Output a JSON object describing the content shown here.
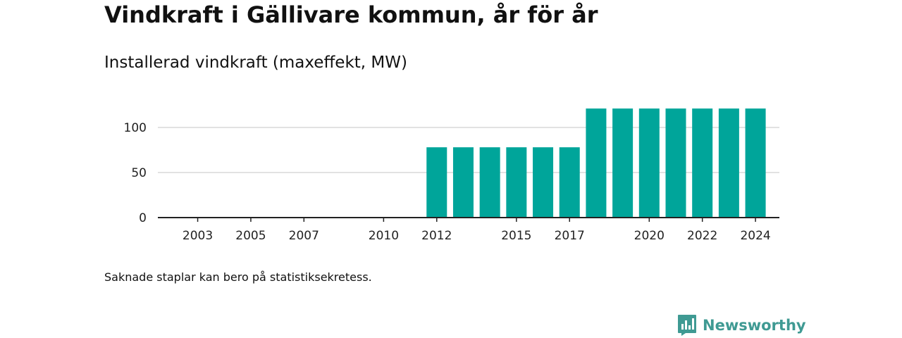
{
  "header": {
    "title": "Vindkraft i Gällivare kommun, år för år",
    "subtitle": "Installerad vindkraft (maxeffekt, MW)"
  },
  "footer": {
    "note": "Saknade staplar kan bero på statistiksekretess.",
    "brand": "Newsworthy"
  },
  "colors": {
    "bar": "#00a59a",
    "brand": "#3f9a93",
    "axis": "#222222",
    "grid": "#d9d9d9"
  },
  "icons": {
    "brand_logo": "bar-chart-speech-bubble-icon"
  },
  "chart_data": {
    "type": "bar",
    "title": "Vindkraft i Gällivare kommun, år för år",
    "subtitle": "Installerad vindkraft (maxeffekt, MW)",
    "xlabel": "",
    "ylabel": "",
    "ylim": [
      0,
      125
    ],
    "yticks": [
      0,
      50,
      100
    ],
    "xticks": [
      2003,
      2005,
      2007,
      2010,
      2012,
      2015,
      2017,
      2020,
      2022,
      2024
    ],
    "grid": true,
    "categories": [
      2002,
      2003,
      2004,
      2005,
      2006,
      2007,
      2008,
      2009,
      2010,
      2011,
      2012,
      2013,
      2014,
      2015,
      2016,
      2017,
      2018,
      2019,
      2020,
      2021,
      2022,
      2023,
      2024
    ],
    "values": [
      null,
      null,
      null,
      null,
      null,
      null,
      null,
      null,
      null,
      null,
      78,
      78,
      78,
      78,
      78,
      78,
      121,
      121,
      121,
      121,
      121,
      121,
      121
    ]
  }
}
